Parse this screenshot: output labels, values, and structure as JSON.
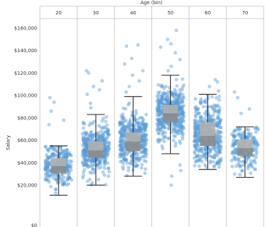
{
  "chart_data": {
    "type": "box",
    "title": "",
    "facet_title": "Age (bin)",
    "xlabel": "",
    "ylabel": "Salary",
    "categories": [
      "20",
      "30",
      "40",
      "50",
      "60",
      "70"
    ],
    "ylim": [
      0,
      165000
    ],
    "y_ticks": [
      20000,
      40000,
      60000,
      80000,
      100000,
      120000,
      140000,
      160000
    ],
    "y_tick_labels": [
      "$20,000",
      "$40,000",
      "$60,000",
      "$80,000",
      "$100,000",
      "$120,000",
      "$140,000",
      "$160,000"
    ],
    "bottom_tick_label": "$0",
    "grid": false,
    "point_color": "#5b9bd5",
    "box_color": "#b0b0b0",
    "median_band_color": "#8c8c8c",
    "whisker_color": "#333333",
    "series": [
      {
        "category": "20",
        "whisker_low": 11000,
        "q1": 30500,
        "median": 37000,
        "q3": 44000,
        "whisker_high": 55000,
        "outliers_high": [
          74000,
          78000,
          86000,
          94000,
          98000
        ],
        "n_points": 260
      },
      {
        "category": "30",
        "whisker_low": 20000,
        "q1": 44500,
        "median": 51000,
        "q3": 59000,
        "whisker_high": 83000,
        "outliers_high": [
          89000,
          93000,
          101000,
          105000,
          108000,
          113000,
          120000,
          122000
        ],
        "n_points": 420
      },
      {
        "category": "40",
        "whisker_low": 28000,
        "q1": 50500,
        "median": 59000,
        "q3": 67000,
        "whisker_high": 99000,
        "outliers_high": [
          103000,
          108000,
          113000,
          118000,
          122000,
          128000,
          133000,
          144000,
          145000
        ],
        "n_points": 440
      },
      {
        "category": "50",
        "whisker_low": 48000,
        "q1": 76500,
        "median": 84000,
        "q3": 91500,
        "whisker_high": 118000,
        "outliers_high": [
          122000,
          126000,
          132000,
          138000,
          143000,
          146000,
          150000,
          158000
        ],
        "outliers_low": [
          20000,
          28000,
          33000,
          38000
        ],
        "n_points": 480
      },
      {
        "category": "60",
        "whisker_low": 34000,
        "q1": 55000,
        "median": 64000,
        "q3": 76000,
        "whisker_high": 101000,
        "outliers_high": [
          104000,
          108000,
          112000,
          114000
        ],
        "n_points": 420
      },
      {
        "category": "70",
        "whisker_low": 27000,
        "q1": 46000,
        "median": 53000,
        "q3": 61000,
        "whisker_high": 72000,
        "outliers_high": [
          84000,
          88000,
          98000,
          103000
        ],
        "n_points": 200
      }
    ]
  }
}
